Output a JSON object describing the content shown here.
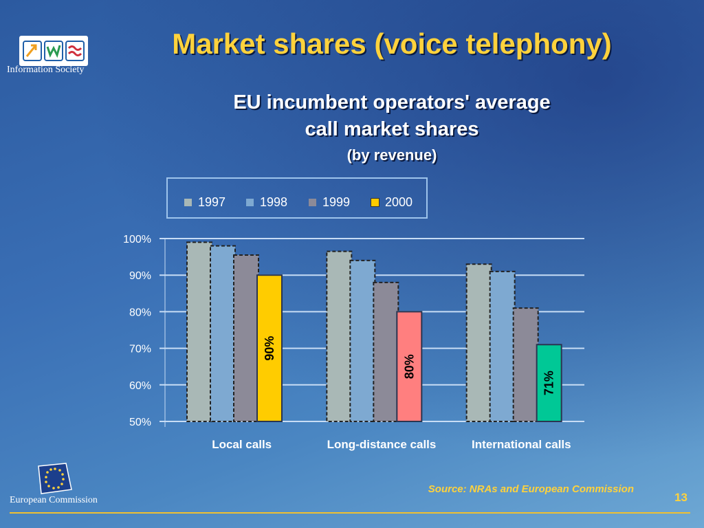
{
  "slide": {
    "title": "Market shares (voice telephony)",
    "logo_top_text": "Information Society",
    "logo_bottom_text": "European Commission",
    "source": "Source: NRAs and European Commission",
    "page_number": "13",
    "accent_color": "#ffd23c"
  },
  "chart_data": {
    "type": "bar",
    "title_lines": [
      "EU incumbent operators' average",
      "call market shares",
      "(by revenue)"
    ],
    "xlabel": "",
    "ylabel": "",
    "ylim": [
      50,
      100
    ],
    "y_ticks": [
      "100%",
      "90%",
      "80%",
      "70%",
      "60%",
      "50%"
    ],
    "grid": true,
    "legend_position": "top",
    "categories": [
      "Local calls",
      "Long-distance calls",
      "International calls"
    ],
    "series": [
      {
        "name": "1997",
        "values": [
          99,
          96.5,
          93
        ],
        "color": "#a9b8b6"
      },
      {
        "name": "1998",
        "values": [
          98,
          94,
          91
        ],
        "color": "#7ea9d1"
      },
      {
        "name": "1999",
        "values": [
          95.5,
          88,
          81
        ],
        "color": "#8c8a98"
      },
      {
        "name": "2000",
        "values": [
          90,
          80,
          71
        ],
        "colors": [
          "#ffcc00",
          "#ff7f7f",
          "#00c896"
        ],
        "legend_color": "#ffcc00",
        "labels": [
          "90%",
          "80%",
          "71%"
        ]
      }
    ]
  }
}
